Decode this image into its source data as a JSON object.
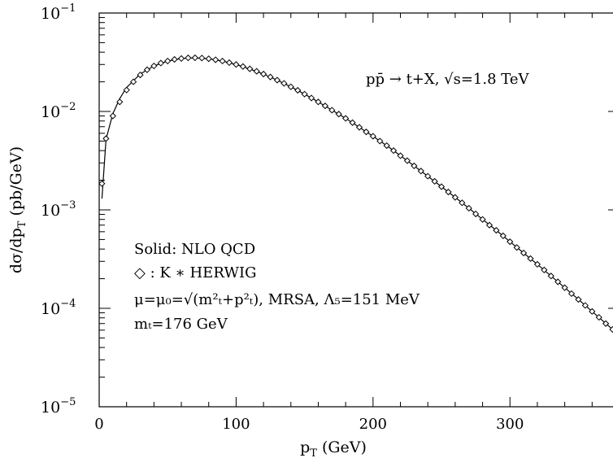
{
  "chart_data": {
    "type": "line",
    "title": "",
    "xlabel": {
      "base": "p",
      "sub": "T",
      "unit": " (GeV)"
    },
    "ylabel": {
      "pre": "dσ/dp",
      "sub": "T",
      "post": " (pb/GeV)"
    },
    "xlim": [
      0,
      380
    ],
    "ylim": [
      1e-05,
      0.1
    ],
    "yscale": "log",
    "grid": false,
    "legend": "none",
    "x_ticks": [
      {
        "value": 0,
        "label": "0"
      },
      {
        "value": 100,
        "label": "100"
      },
      {
        "value": 200,
        "label": "200"
      },
      {
        "value": 300,
        "label": "300"
      }
    ],
    "y_ticks": [
      {
        "value": 0.1,
        "base": "10",
        "exp": "−1"
      },
      {
        "value": 0.01,
        "base": "10",
        "exp": "−2"
      },
      {
        "value": 0.001,
        "base": "10",
        "exp": "−3"
      },
      {
        "value": 0.0001,
        "base": "10",
        "exp": "−4"
      },
      {
        "value": 1e-05,
        "base": "10",
        "exp": "−5"
      }
    ],
    "annotations": {
      "process": "pp̄ → t+X, √s=1.8 TeV",
      "solid_label": "Solid: NLO QCD",
      "marker_label": "◇ : K ∗ HERWIG",
      "scale_line": "μ=μ₀=√(m²ₜ+p²ₜ), MRSA, Λ₅=151 MeV",
      "mass_line": "mₜ=176 GeV"
    },
    "series": [
      {
        "style": "solid-line",
        "x": [
          2,
          5,
          10,
          15,
          20,
          30,
          40,
          50,
          60,
          70,
          80,
          90,
          100,
          110,
          120,
          130,
          140,
          150,
          160,
          170,
          180,
          190,
          200,
          210,
          220,
          230,
          240,
          250,
          260,
          270,
          280,
          290,
          300,
          310,
          320,
          330,
          340,
          350,
          360,
          370,
          380
        ],
        "y": [
          0.0013,
          0.0052,
          0.0095,
          0.0135,
          0.0175,
          0.024,
          0.029,
          0.0325,
          0.0345,
          0.035,
          0.0343,
          0.0325,
          0.03,
          0.027,
          0.024,
          0.0208,
          0.0178,
          0.015,
          0.0125,
          0.0103,
          0.0085,
          0.0069,
          0.0056,
          0.0045,
          0.00355,
          0.0028,
          0.0022,
          0.00172,
          0.00134,
          0.00104,
          0.0008,
          0.00062,
          0.000475,
          0.000365,
          0.00028,
          0.000213,
          0.000162,
          0.000123,
          9.3e-05,
          7e-05,
          5.3e-05
        ]
      },
      {
        "style": "diamond-markers",
        "x": [
          2,
          5,
          10,
          15,
          20,
          25,
          30,
          35,
          40,
          45,
          50,
          55,
          60,
          65,
          70,
          75,
          80,
          85,
          90,
          95,
          100,
          105,
          110,
          115,
          120,
          125,
          130,
          135,
          140,
          145,
          150,
          155,
          160,
          165,
          170,
          175,
          180,
          185,
          190,
          195,
          200,
          205,
          210,
          215,
          220,
          225,
          230,
          235,
          240,
          245,
          250,
          255,
          260,
          265,
          270,
          275,
          280,
          285,
          290,
          295,
          300,
          305,
          310,
          315,
          320,
          325,
          330,
          335,
          340,
          345,
          350,
          355,
          360,
          365,
          370,
          375
        ],
        "y": [
          0.00185,
          0.0053,
          0.009,
          0.0125,
          0.0165,
          0.02,
          0.0235,
          0.0265,
          0.029,
          0.031,
          0.0325,
          0.0338,
          0.0345,
          0.035,
          0.0351,
          0.0349,
          0.0343,
          0.0335,
          0.0325,
          0.0313,
          0.03,
          0.0286,
          0.0271,
          0.0256,
          0.024,
          0.0224,
          0.0208,
          0.0193,
          0.0178,
          0.0164,
          0.015,
          0.0137,
          0.0125,
          0.0114,
          0.0103,
          0.0094,
          0.0085,
          0.0077,
          0.0069,
          0.0062,
          0.0056,
          0.005,
          0.0045,
          0.004,
          0.00355,
          0.00316,
          0.0028,
          0.00248,
          0.0022,
          0.00195,
          0.00172,
          0.00152,
          0.00134,
          0.00118,
          0.00104,
          0.00091,
          0.0008,
          0.0007,
          0.00062,
          0.000545,
          0.000475,
          0.000415,
          0.000365,
          0.00032,
          0.00028,
          0.000245,
          0.000213,
          0.000186,
          0.000162,
          0.000141,
          0.000123,
          0.000107,
          9.3e-05,
          8.1e-05,
          7e-05,
          6.1e-05
        ]
      }
    ]
  }
}
